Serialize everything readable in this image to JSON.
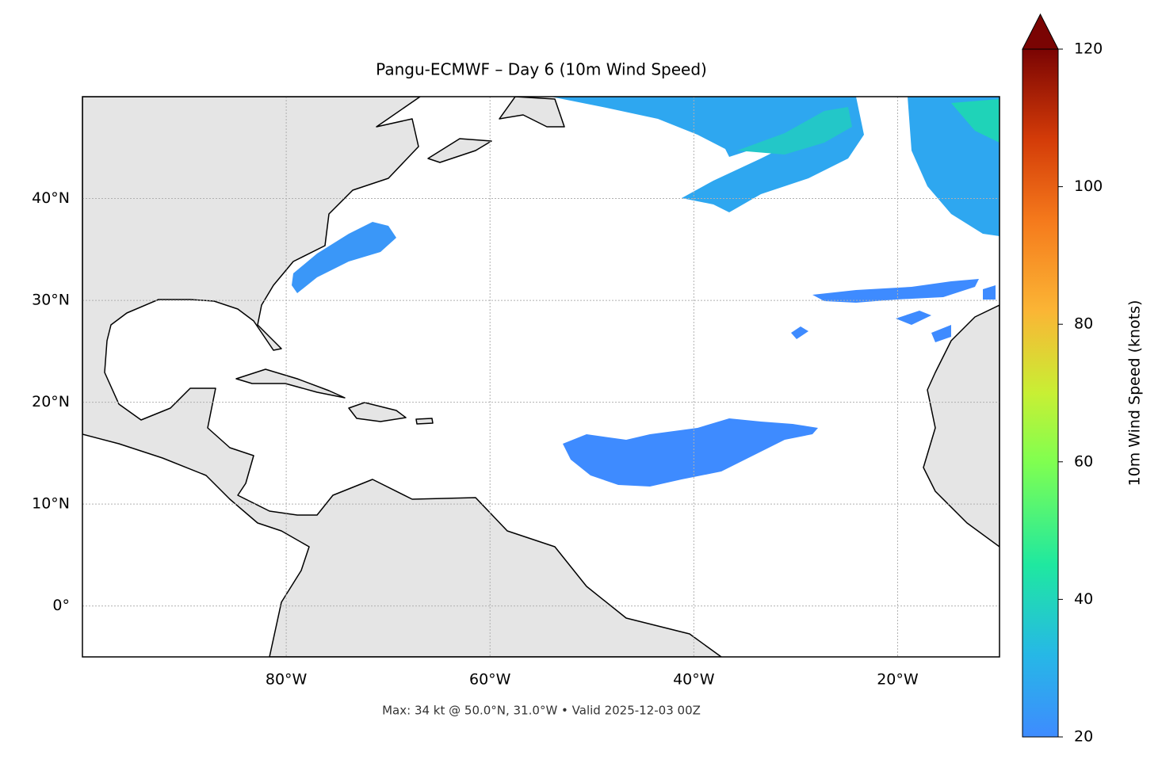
{
  "chart_data": {
    "type": "map",
    "title": "Pangu-ECMWF – Day 6 (10m Wind Speed)",
    "annotation": "Max: 34 kt @ 50.0°N, 31.0°W • Valid 2025-12-03 00Z",
    "xlim": [
      -100,
      -10
    ],
    "ylim": [
      -5,
      50
    ],
    "xticks": [
      {
        "value": -80,
        "label": "80°W"
      },
      {
        "value": -60,
        "label": "60°W"
      },
      {
        "value": -40,
        "label": "40°W"
      },
      {
        "value": -20,
        "label": "20°W"
      }
    ],
    "yticks": [
      {
        "value": 0,
        "label": "0°"
      },
      {
        "value": 10,
        "label": "10°N"
      },
      {
        "value": 20,
        "label": "20°N"
      },
      {
        "value": 30,
        "label": "30°N"
      },
      {
        "value": 40,
        "label": "40°N"
      }
    ],
    "grid": true,
    "colorbar": {
      "label": "10m Wind Speed (knots)",
      "lim": [
        20,
        120
      ],
      "ticks": [
        20,
        40,
        60,
        80,
        100,
        120
      ],
      "extend": "max"
    }
  }
}
